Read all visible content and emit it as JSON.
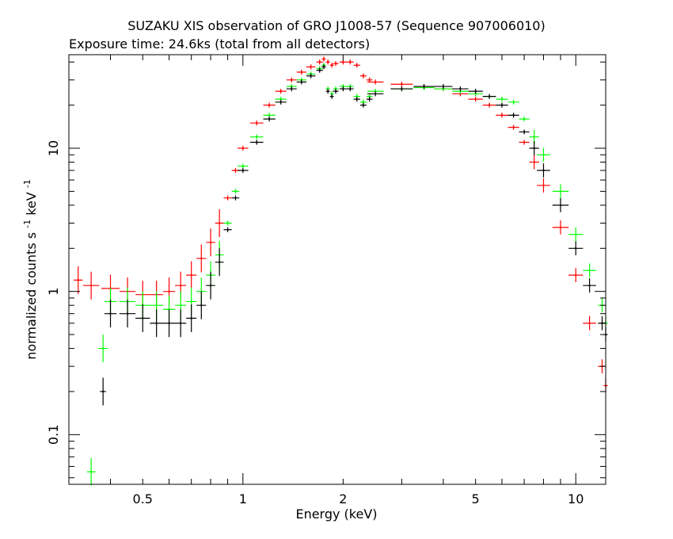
{
  "chart_data": {
    "type": "scatter",
    "title": "SUZAKU XIS observation of GRO J1008-57 (Sequence 907006010)",
    "subtitle": "Exposure time: 24.6ks (total from all detectors)",
    "xlabel": "Energy (keV)",
    "ylabel_main": "normalized counts s",
    "ylabel_sup1": "-1",
    "ylabel_mid": " keV",
    "ylabel_sup2": "-1",
    "x_scale": "log",
    "y_scale": "log",
    "xlim": [
      0.3,
      12.3
    ],
    "ylim": [
      0.045,
      45
    ],
    "x_ticks": [
      {
        "value": 0.5,
        "label": "0.5"
      },
      {
        "value": 1,
        "label": "1"
      },
      {
        "value": 2,
        "label": "2"
      },
      {
        "value": 5,
        "label": "5"
      },
      {
        "value": 10,
        "label": "10"
      }
    ],
    "y_ticks": [
      {
        "value": 0.1,
        "label": "0.1"
      },
      {
        "value": 1,
        "label": "1"
      },
      {
        "value": 10,
        "label": "10"
      }
    ],
    "grid": false,
    "legend": "none",
    "series": [
      {
        "color": "#ff0000",
        "x": [
          0.32,
          0.35,
          0.4,
          0.45,
          0.5,
          0.55,
          0.6,
          0.65,
          0.7,
          0.75,
          0.8,
          0.85,
          0.9,
          0.95,
          1.0,
          1.1,
          1.2,
          1.3,
          1.4,
          1.5,
          1.6,
          1.7,
          1.75,
          1.8,
          1.85,
          1.9,
          2.0,
          2.1,
          2.2,
          2.3,
          2.4,
          2.5,
          3.0,
          3.5,
          4.0,
          4.5,
          5.0,
          5.5,
          6.0,
          6.5,
          7.0,
          7.5,
          8.0,
          9.0,
          10.0,
          11.0,
          12.0,
          12.3
        ],
        "y": [
          1.2,
          1.1,
          1.05,
          1.0,
          0.95,
          0.95,
          1.0,
          1.1,
          1.3,
          1.7,
          2.2,
          3.0,
          4.5,
          7.0,
          10.0,
          15.0,
          20.0,
          25.0,
          30.0,
          34.0,
          37.0,
          40.0,
          42.0,
          40.0,
          38.0,
          39.0,
          40.0,
          40.0,
          38.0,
          32.0,
          30.0,
          29.0,
          28.0,
          27.0,
          26.0,
          24.0,
          22.0,
          20.0,
          17.0,
          14.0,
          11.0,
          8.0,
          5.5,
          2.8,
          1.3,
          0.6,
          0.3,
          0.22
        ]
      },
      {
        "color": "#00ff00",
        "x": [
          0.35,
          0.38,
          0.4,
          0.45,
          0.5,
          0.55,
          0.6,
          0.65,
          0.7,
          0.75,
          0.8,
          0.85,
          0.9,
          0.95,
          1.0,
          1.1,
          1.2,
          1.3,
          1.4,
          1.5,
          1.6,
          1.7,
          1.75,
          1.8,
          1.85,
          1.9,
          2.0,
          2.1,
          2.2,
          2.3,
          2.4,
          2.5,
          3.0,
          3.5,
          4.0,
          4.5,
          5.0,
          5.5,
          6.0,
          6.5,
          7.0,
          7.5,
          8.0,
          9.0,
          10.0,
          11.0,
          12.0,
          12.3
        ],
        "y": [
          0.055,
          0.4,
          0.85,
          0.85,
          0.8,
          0.8,
          0.75,
          0.8,
          0.85,
          1.0,
          1.3,
          1.8,
          3.0,
          5.0,
          7.5,
          12.0,
          17.0,
          22.0,
          27.0,
          30.0,
          33.0,
          36.0,
          38.0,
          26.0,
          24.0,
          26.0,
          27.0,
          27.0,
          23.0,
          21.0,
          23.0,
          25.0,
          26.0,
          26.5,
          26.0,
          25.0,
          24.0,
          23.0,
          22.0,
          21.0,
          16.0,
          12.0,
          9.0,
          5.0,
          2.5,
          1.4,
          0.8,
          0.6
        ]
      },
      {
        "color": "#000000",
        "x": [
          0.38,
          0.4,
          0.45,
          0.5,
          0.55,
          0.6,
          0.65,
          0.7,
          0.75,
          0.8,
          0.85,
          0.9,
          0.95,
          1.0,
          1.1,
          1.2,
          1.3,
          1.4,
          1.5,
          1.6,
          1.7,
          1.75,
          1.8,
          1.85,
          1.9,
          2.0,
          2.1,
          2.2,
          2.3,
          2.4,
          2.5,
          3.0,
          3.5,
          4.0,
          4.5,
          5.0,
          5.5,
          6.0,
          6.5,
          7.0,
          7.5,
          8.0,
          9.0,
          10.0,
          11.0,
          12.0,
          12.3
        ],
        "y": [
          0.2,
          0.7,
          0.7,
          0.65,
          0.6,
          0.6,
          0.6,
          0.65,
          0.8,
          1.1,
          1.6,
          2.7,
          4.5,
          7.0,
          11.0,
          16.0,
          21.0,
          26.0,
          29.0,
          32.0,
          35.0,
          37.0,
          25.0,
          23.0,
          25.0,
          26.0,
          26.0,
          22.0,
          20.0,
          22.0,
          24.0,
          26.0,
          27.0,
          27.0,
          26.0,
          25.0,
          23.0,
          20.0,
          17.0,
          13.0,
          10.0,
          7.0,
          4.0,
          2.0,
          1.1,
          0.6,
          0.5
        ]
      }
    ]
  }
}
